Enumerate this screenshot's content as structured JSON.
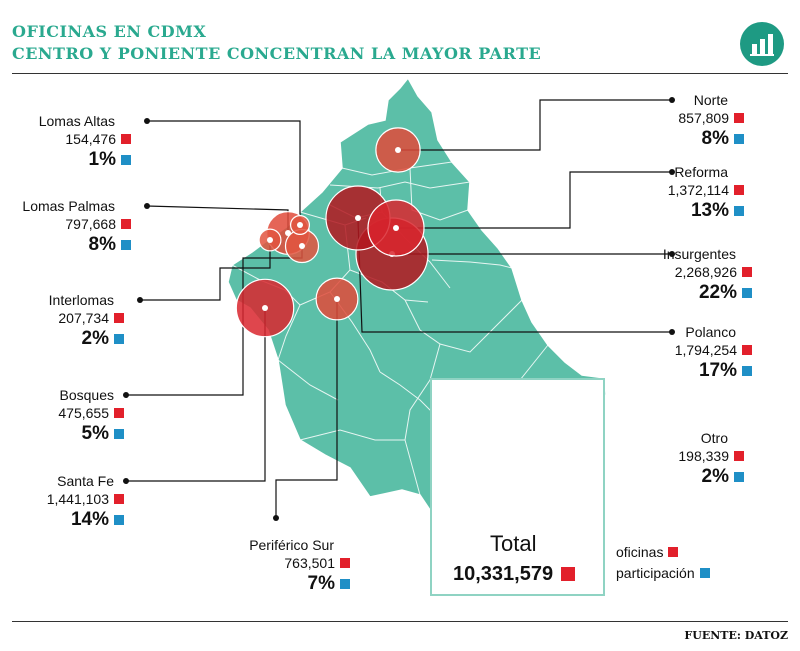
{
  "header": {
    "title_line1": "OFICINAS EN CDMX",
    "title_line2": "CENTRO Y PONIENTE CONCENTRAN LA MAYOR PARTE"
  },
  "logo_icon": "bar-chart-icon",
  "colors": {
    "map_fill": "#5cbfa8",
    "accent": "#2aa98f",
    "oficinas": "#e2202b",
    "participacion": "#1f8fc6"
  },
  "zones": [
    {
      "key": "lomas_altas",
      "name": "Lomas Altas",
      "oficinas": "154,476",
      "participacion": "1%"
    },
    {
      "key": "lomas_palmas",
      "name": "Lomas Palmas",
      "oficinas": "797,668",
      "participacion": "8%"
    },
    {
      "key": "interlomas",
      "name": "Interlomas",
      "oficinas": "207,734",
      "participacion": "2%"
    },
    {
      "key": "bosques",
      "name": "Bosques",
      "oficinas": "475,655",
      "participacion": "5%"
    },
    {
      "key": "santa_fe",
      "name": "Santa Fe",
      "oficinas": "1,441,103",
      "participacion": "14%"
    },
    {
      "key": "periferico_sur",
      "name": "Periférico Sur",
      "oficinas": "763,501",
      "participacion": "7%"
    },
    {
      "key": "norte",
      "name": "Norte",
      "oficinas": "857,809",
      "participacion": "8%"
    },
    {
      "key": "reforma",
      "name": "Reforma",
      "oficinas": "1,372,114",
      "participacion": "13%"
    },
    {
      "key": "insurgentes",
      "name": "Insurgentes",
      "oficinas": "2,268,926",
      "participacion": "22%"
    },
    {
      "key": "polanco",
      "name": "Polanco",
      "oficinas": "1,794,254",
      "participacion": "17%"
    },
    {
      "key": "otro",
      "name": "Otro",
      "oficinas": "198,339",
      "participacion": "2%"
    }
  ],
  "total": {
    "label": "Total",
    "value": "10,331,579"
  },
  "legend": {
    "oficinas": "oficinas",
    "participacion": "participación"
  },
  "source": "FUENTE: DATOZ"
}
